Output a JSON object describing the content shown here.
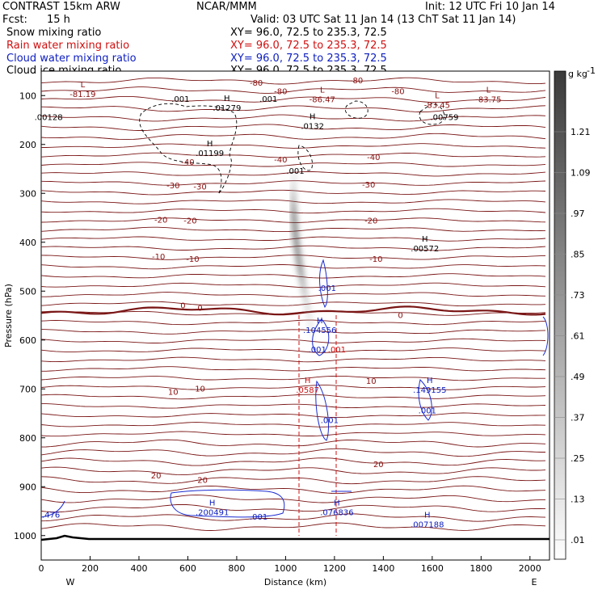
{
  "header": {
    "model": "CONTRAST 15km ARW",
    "agency": "NCAR/MMM",
    "init": "Init: 12 UTC Fri 10 Jan 14",
    "fcst_label": "Fcst:",
    "fcst_value": "15 h",
    "valid": "Valid: 03 UTC Sat 11 Jan 14 (13 ChT Sat 11 Jan 14)",
    "fields": [
      {
        "name": "Snow mixing ratio",
        "xy": "XY=  96.0, 72.5 to 235.3, 72.5",
        "color": "#000000"
      },
      {
        "name": "Rain water mixing ratio",
        "xy": "XY=  96.0, 72.5 to 235.3, 72.5",
        "color": "#d01010"
      },
      {
        "name": "Cloud water mixing ratio",
        "xy": "XY=  96.0, 72.5 to 235.3, 72.5",
        "color": "#1020c0"
      },
      {
        "name": "Cloud ice mixing ratio",
        "xy": "XY=  96.0, 72.5 to 235.3, 72.5",
        "color": "#000000"
      }
    ]
  },
  "chart_data": {
    "type": "cross-section contour",
    "xlabel": "Distance (km)",
    "ylabel": "Pressure (hPa)",
    "xlim": [
      0,
      2080
    ],
    "ylim": [
      1050,
      50
    ],
    "x_ticks": [
      "0",
      "200",
      "400",
      "600",
      "800",
      "1000",
      "1200",
      "1400",
      "1600",
      "1800",
      "2000"
    ],
    "y_ticks": [
      "100",
      "200",
      "300",
      "400",
      "500",
      "600",
      "700",
      "800",
      "900",
      "1000"
    ],
    "x_ends": {
      "left": "W",
      "right": "E"
    },
    "colorbar": {
      "unit": "g kg",
      "unit_exp": "-1",
      "levels": [
        "1.21",
        "1.09",
        ".97",
        ".85",
        ".73",
        ".61",
        ".49",
        ".37",
        ".25",
        ".13",
        ".01"
      ]
    },
    "isotherm_labels": [
      {
        "text": "-80",
        "x": 880,
        "p": 75
      },
      {
        "text": "-80",
        "x": 980,
        "p": 92
      },
      {
        "text": "-80",
        "x": 1290,
        "p": 70
      },
      {
        "text": "-80",
        "x": 1460,
        "p": 92
      },
      {
        "text": "-40",
        "x": 600,
        "p": 237
      },
      {
        "text": "-40",
        "x": 980,
        "p": 232
      },
      {
        "text": "-40",
        "x": 1360,
        "p": 227
      },
      {
        "text": "-30",
        "x": 540,
        "p": 285
      },
      {
        "text": "-30",
        "x": 650,
        "p": 287
      },
      {
        "text": "-30",
        "x": 1340,
        "p": 283
      },
      {
        "text": "-20",
        "x": 490,
        "p": 355
      },
      {
        "text": "-20",
        "x": 610,
        "p": 357
      },
      {
        "text": "-20",
        "x": 1350,
        "p": 357
      },
      {
        "text": "-10",
        "x": 480,
        "p": 430
      },
      {
        "text": "-10",
        "x": 620,
        "p": 435
      },
      {
        "text": "-10",
        "x": 1370,
        "p": 435
      },
      {
        "text": "0",
        "x": 580,
        "p": 530
      },
      {
        "text": "0",
        "x": 650,
        "p": 535
      },
      {
        "text": "0",
        "x": 1470,
        "p": 550
      },
      {
        "text": "10",
        "x": 540,
        "p": 707
      },
      {
        "text": "10",
        "x": 650,
        "p": 700
      },
      {
        "text": "10",
        "x": 1350,
        "p": 685
      },
      {
        "text": "20",
        "x": 470,
        "p": 878
      },
      {
        "text": "20",
        "x": 660,
        "p": 887
      },
      {
        "text": "20",
        "x": 1380,
        "p": 855
      }
    ],
    "hl_markers": [
      {
        "sym": "L",
        "val": "-81.19",
        "x": 170,
        "p": 90,
        "color": "#8a1010"
      },
      {
        "sym": "L",
        "val": "-86.47",
        "x": 1150,
        "p": 100,
        "color": "#8a1010"
      },
      {
        "sym": "L",
        "val": "-83.45",
        "x": 1620,
        "p": 112,
        "color": "#8a1010"
      },
      {
        "sym": "L",
        "val": "-83.75",
        "x": 1830,
        "p": 100,
        "color": "#8a1010"
      },
      {
        "sym": "H",
        "val": ".01279",
        "x": 760,
        "p": 118,
        "color": "#000000"
      },
      {
        "sym": "H",
        "val": ".0132",
        "x": 1110,
        "p": 155,
        "color": "#000000"
      },
      {
        "sym": "H",
        "val": ".01199",
        "x": 690,
        "p": 210,
        "color": "#000000"
      },
      {
        "sym": "H",
        "val": ".00572",
        "x": 1570,
        "p": 405,
        "color": "#000000"
      },
      {
        "sym": "H",
        "val": ".104556",
        "x": 1140,
        "p": 572,
        "color": "#1020c0"
      },
      {
        "sym": "H",
        "val": ".0587",
        "x": 1090,
        "p": 695,
        "color": "#d01010"
      },
      {
        "sym": "H",
        "val": ".149155",
        "x": 1590,
        "p": 695,
        "color": "#1020c0"
      },
      {
        "sym": "H",
        "val": ".200491",
        "x": 700,
        "p": 945,
        "color": "#1020c0"
      },
      {
        "sym": "H",
        "val": ".076836",
        "x": 1210,
        "p": 945,
        "color": "#1020c0"
      },
      {
        "sym": "H",
        "val": ".007188",
        "x": 1580,
        "p": 970,
        "color": "#1020c0"
      }
    ],
    "contour_labels": [
      {
        "text": ".001",
        "x": 570,
        "p": 108,
        "color": "#000000"
      },
      {
        "text": ".001",
        "x": 930,
        "p": 108,
        "color": "#000000"
      },
      {
        "text": ".00128",
        "x": 30,
        "p": 145,
        "color": "#000000"
      },
      {
        "text": ".00759",
        "x": 1650,
        "p": 145,
        "color": "#000000"
      },
      {
        "text": ".001",
        "x": 1040,
        "p": 255,
        "color": "#000000"
      },
      {
        "text": ".001",
        "x": 1170,
        "p": 495,
        "color": "#1020c0"
      },
      {
        "text": ".001",
        "x": 1130,
        "p": 620,
        "color": "#1020c0"
      },
      {
        "text": ".001",
        "x": 1210,
        "p": 620,
        "color": "#d01010"
      },
      {
        "text": ".001",
        "x": 1580,
        "p": 745,
        "color": "#1020c0"
      },
      {
        "text": ".001",
        "x": 1180,
        "p": 765,
        "color": "#1020c0"
      },
      {
        "text": ".001",
        "x": 890,
        "p": 962,
        "color": "#1020c0"
      },
      {
        "text": ".476",
        "x": 40,
        "p": 958,
        "color": "#1020c0"
      }
    ]
  }
}
